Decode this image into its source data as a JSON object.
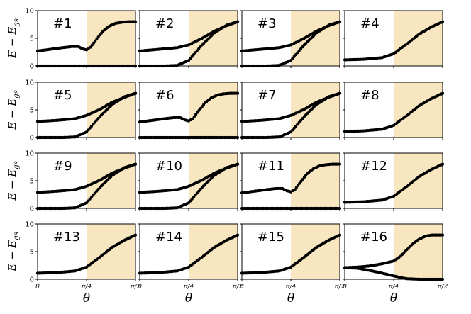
{
  "chart_data": {
    "type": "line",
    "layout": "4x4 grid of panels",
    "shared_axes": {
      "xlabel": "θ",
      "ylabel_main": "E − E",
      "ylabel_sub": "gs",
      "x_range": [
        0,
        1.5708
      ],
      "y_range": [
        0,
        10
      ],
      "x_tick_values": [
        0,
        0.7854,
        1.5708
      ],
      "x_tick_labels": [
        "0",
        "π/4",
        "π/2"
      ],
      "y_tick_values": [
        0,
        5,
        10
      ],
      "y_tick_labels": [
        "0",
        "5",
        "10"
      ],
      "shaded_region": {
        "x_from": 0.7854,
        "x_to": 1.5708,
        "color": "#f7e6c0"
      },
      "marker_color": "#000000",
      "grid": false
    },
    "panels": [
      {
        "label": "#1",
        "series": [
          {
            "x": [
              0,
              0.2,
              0.4,
              0.55,
              0.65,
              0.72,
              0.7854,
              0.85,
              0.95,
              1.05,
              1.15,
              1.25,
              1.35,
              1.45,
              1.5708
            ],
            "y": [
              2.7,
              3.0,
              3.3,
              3.5,
              3.5,
              3.1,
              2.9,
              3.4,
              4.9,
              6.3,
              7.2,
              7.7,
              7.9,
              8.0,
              8.0
            ]
          },
          {
            "x": [
              0,
              0.7854,
              1.5708
            ],
            "y": [
              0,
              0,
              0
            ]
          }
        ]
      },
      {
        "label": "#2",
        "series": [
          {
            "x": [
              0,
              0.3,
              0.6,
              0.7854,
              1.0,
              1.2,
              1.4,
              1.5708
            ],
            "y": [
              2.7,
              3.0,
              3.3,
              3.8,
              5.0,
              6.3,
              7.3,
              8.0
            ]
          },
          {
            "x": [
              0,
              0.4,
              0.6,
              0.7854,
              1.0,
              1.2,
              1.4,
              1.5708
            ],
            "y": [
              0,
              0,
              0.1,
              1.0,
              3.8,
              6.0,
              7.4,
              8.0
            ]
          }
        ]
      },
      {
        "label": "#3",
        "series": [
          {
            "x": [
              0,
              0.3,
              0.6,
              0.7854,
              1.0,
              1.2,
              1.4,
              1.5708
            ],
            "y": [
              2.7,
              3.0,
              3.3,
              3.8,
              5.0,
              6.3,
              7.3,
              8.0
            ]
          },
          {
            "x": [
              0,
              0.4,
              0.6,
              0.7854,
              1.0,
              1.2,
              1.4,
              1.5708
            ],
            "y": [
              0,
              0,
              0.1,
              1.0,
              3.8,
              6.0,
              7.4,
              8.0
            ]
          }
        ]
      },
      {
        "label": "#4",
        "series": [
          {
            "x": [
              0,
              0.3,
              0.6,
              0.7854,
              1.0,
              1.2,
              1.4,
              1.5708
            ],
            "y": [
              1.1,
              1.2,
              1.5,
              2.2,
              4.0,
              5.8,
              7.1,
              8.0
            ]
          }
        ]
      },
      {
        "label": "#5",
        "series": [
          {
            "x": [
              0,
              0.3,
              0.6,
              0.7854,
              1.0,
              1.2,
              1.4,
              1.5708
            ],
            "y": [
              2.9,
              3.1,
              3.4,
              4.0,
              5.1,
              6.4,
              7.3,
              8.0
            ]
          },
          {
            "x": [
              0,
              0.4,
              0.6,
              0.7854,
              1.0,
              1.2,
              1.4,
              1.5708
            ],
            "y": [
              0,
              0,
              0.1,
              1.0,
              3.8,
              6.0,
              7.4,
              8.0
            ]
          }
        ]
      },
      {
        "label": "#6",
        "series": [
          {
            "x": [
              0,
              0.2,
              0.4,
              0.55,
              0.65,
              0.72,
              0.7854,
              0.85,
              0.95,
              1.05,
              1.15,
              1.25,
              1.35,
              1.45,
              1.5708
            ],
            "y": [
              2.8,
              3.1,
              3.4,
              3.6,
              3.6,
              3.2,
              3.0,
              3.4,
              4.9,
              6.3,
              7.2,
              7.7,
              7.9,
              8.0,
              8.0
            ]
          },
          {
            "x": [
              0,
              0.7854,
              1.5708
            ],
            "y": [
              0,
              0,
              0
            ]
          }
        ]
      },
      {
        "label": "#7",
        "series": [
          {
            "x": [
              0,
              0.3,
              0.6,
              0.7854,
              1.0,
              1.2,
              1.4,
              1.5708
            ],
            "y": [
              2.9,
              3.1,
              3.4,
              4.0,
              5.1,
              6.4,
              7.3,
              8.0
            ]
          },
          {
            "x": [
              0,
              0.4,
              0.6,
              0.7854,
              1.0,
              1.2,
              1.4,
              1.5708
            ],
            "y": [
              0,
              0,
              0.1,
              1.0,
              3.8,
              6.0,
              7.4,
              8.0
            ]
          }
        ]
      },
      {
        "label": "#8",
        "series": [
          {
            "x": [
              0,
              0.3,
              0.6,
              0.7854,
              1.0,
              1.2,
              1.4,
              1.5708
            ],
            "y": [
              1.1,
              1.2,
              1.5,
              2.2,
              4.0,
              5.8,
              7.1,
              8.0
            ]
          }
        ]
      },
      {
        "label": "#9",
        "series": [
          {
            "x": [
              0,
              0.3,
              0.6,
              0.7854,
              1.0,
              1.2,
              1.4,
              1.5708
            ],
            "y": [
              2.9,
              3.1,
              3.4,
              4.0,
              5.1,
              6.4,
              7.3,
              8.0
            ]
          },
          {
            "x": [
              0,
              0.4,
              0.6,
              0.7854,
              1.0,
              1.2,
              1.4,
              1.5708
            ],
            "y": [
              0,
              0,
              0.1,
              1.0,
              3.8,
              6.0,
              7.4,
              8.0
            ]
          }
        ]
      },
      {
        "label": "#10",
        "series": [
          {
            "x": [
              0,
              0.3,
              0.6,
              0.7854,
              1.0,
              1.2,
              1.4,
              1.5708
            ],
            "y": [
              2.9,
              3.1,
              3.4,
              4.0,
              5.1,
              6.4,
              7.3,
              8.0
            ]
          },
          {
            "x": [
              0,
              0.4,
              0.6,
              0.7854,
              1.0,
              1.2,
              1.4,
              1.5708
            ],
            "y": [
              0,
              0,
              0.1,
              1.0,
              3.8,
              6.0,
              7.4,
              8.0
            ]
          }
        ]
      },
      {
        "label": "#11",
        "series": [
          {
            "x": [
              0,
              0.2,
              0.4,
              0.55,
              0.65,
              0.72,
              0.7854,
              0.85,
              0.95,
              1.05,
              1.15,
              1.25,
              1.35,
              1.45,
              1.5708
            ],
            "y": [
              2.8,
              3.1,
              3.4,
              3.6,
              3.6,
              3.2,
              3.0,
              3.4,
              4.9,
              6.3,
              7.2,
              7.7,
              7.9,
              8.0,
              8.0
            ]
          },
          {
            "x": [
              0,
              0.7854,
              1.5708
            ],
            "y": [
              0,
              0,
              0
            ]
          }
        ]
      },
      {
        "label": "#12",
        "series": [
          {
            "x": [
              0,
              0.3,
              0.6,
              0.7854,
              1.0,
              1.2,
              1.4,
              1.5708
            ],
            "y": [
              1.1,
              1.2,
              1.5,
              2.2,
              4.0,
              5.8,
              7.1,
              8.0
            ]
          }
        ]
      },
      {
        "label": "#13",
        "series": [
          {
            "x": [
              0,
              0.3,
              0.6,
              0.7854,
              1.0,
              1.2,
              1.4,
              1.5708
            ],
            "y": [
              1.1,
              1.2,
              1.5,
              2.2,
              4.0,
              5.8,
              7.1,
              8.0
            ]
          }
        ]
      },
      {
        "label": "#14",
        "series": [
          {
            "x": [
              0,
              0.3,
              0.6,
              0.7854,
              1.0,
              1.2,
              1.4,
              1.5708
            ],
            "y": [
              1.1,
              1.2,
              1.5,
              2.2,
              4.0,
              5.8,
              7.1,
              8.0
            ]
          }
        ]
      },
      {
        "label": "#15",
        "series": [
          {
            "x": [
              0,
              0.3,
              0.6,
              0.7854,
              1.0,
              1.2,
              1.4,
              1.5708
            ],
            "y": [
              1.1,
              1.2,
              1.5,
              2.2,
              4.0,
              5.8,
              7.1,
              8.0
            ]
          }
        ]
      },
      {
        "label": "#16",
        "series": [
          {
            "x": [
              0,
              0.2,
              0.4,
              0.6,
              0.7854,
              0.9,
              1.0,
              1.1,
              1.2,
              1.3,
              1.4,
              1.5708
            ],
            "y": [
              2.1,
              2.2,
              2.4,
              2.8,
              3.3,
              4.2,
              5.4,
              6.5,
              7.3,
              7.8,
              8.0,
              8.0
            ]
          },
          {
            "x": [
              0,
              0.2,
              0.4,
              0.6,
              0.7854,
              0.9,
              1.0,
              1.1,
              1.2,
              1.3,
              1.4,
              1.5708
            ],
            "y": [
              2.1,
              2.0,
              1.6,
              1.1,
              0.6,
              0.3,
              0.1,
              0.05,
              0,
              0,
              0,
              0
            ]
          }
        ]
      }
    ]
  }
}
